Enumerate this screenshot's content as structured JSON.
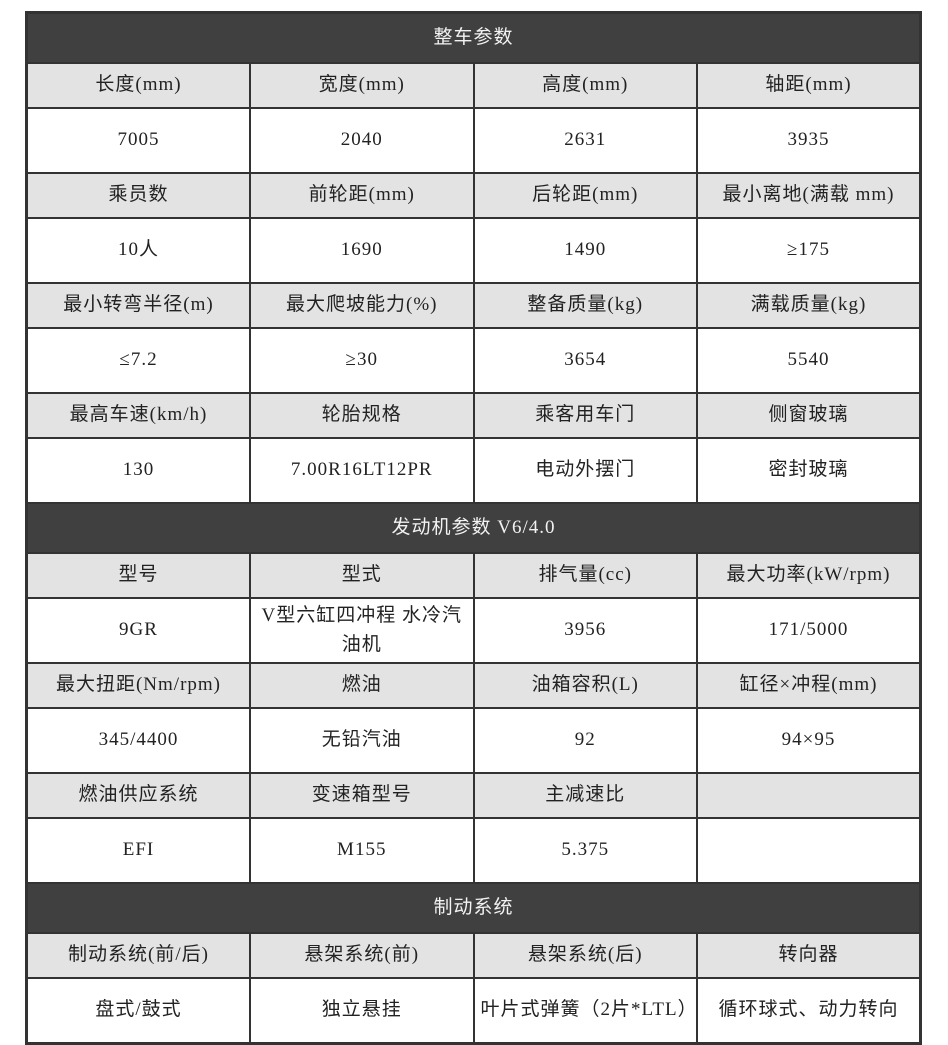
{
  "colors": {
    "section_header_bg": "#404040",
    "section_header_text": "#f2f2f2",
    "label_row_bg": "#e3e3e3",
    "value_row_bg": "#ffffff",
    "border": "#333333"
  },
  "table": {
    "columns": 4,
    "sections": [
      {
        "title": "整车参数",
        "rows": [
          {
            "type": "label",
            "cells": [
              "长度(mm)",
              "宽度(mm)",
              "高度(mm)",
              "轴距(mm)"
            ]
          },
          {
            "type": "value",
            "cells": [
              "7005",
              "2040",
              "2631",
              "3935"
            ]
          },
          {
            "type": "label",
            "cells": [
              "乘员数",
              "前轮距(mm)",
              "后轮距(mm)",
              "最小离地(满载 mm)"
            ]
          },
          {
            "type": "value",
            "cells": [
              "10人",
              "1690",
              "1490",
              "≥175"
            ]
          },
          {
            "type": "label",
            "cells": [
              "最小转弯半径(m)",
              "最大爬坡能力(%)",
              "整备质量(kg)",
              "满载质量(kg)"
            ]
          },
          {
            "type": "value",
            "cells": [
              "≤7.2",
              "≥30",
              "3654",
              "5540"
            ]
          },
          {
            "type": "label",
            "cells": [
              "最高车速(km/h)",
              "轮胎规格",
              "乘客用车门",
              "侧窗玻璃"
            ]
          },
          {
            "type": "value",
            "cells": [
              "130",
              "7.00R16LT12PR",
              "电动外摆门",
              "密封玻璃"
            ]
          }
        ]
      },
      {
        "title": "发动机参数 V6/4.0",
        "rows": [
          {
            "type": "label",
            "cells": [
              "型号",
              "型式",
              "排气量(cc)",
              "最大功率(kW/rpm)"
            ]
          },
          {
            "type": "value",
            "cells": [
              "9GR",
              "V型六缸四冲程 水冷汽油机",
              "3956",
              "171/5000"
            ]
          },
          {
            "type": "label",
            "cells": [
              "最大扭距(Nm/rpm)",
              "燃油",
              "油箱容积(L)",
              "缸径×冲程(mm)"
            ]
          },
          {
            "type": "value",
            "cells": [
              "345/4400",
              "无铅汽油",
              "92",
              "94×95"
            ]
          },
          {
            "type": "label",
            "cells": [
              "燃油供应系统",
              "变速箱型号",
              "主减速比",
              ""
            ]
          },
          {
            "type": "value",
            "cells": [
              "EFI",
              "M155",
              "5.375",
              ""
            ]
          }
        ]
      },
      {
        "title": "制动系统",
        "rows": [
          {
            "type": "label",
            "cells": [
              "制动系统(前/后)",
              "悬架系统(前)",
              "悬架系统(后)",
              "转向器"
            ]
          },
          {
            "type": "value",
            "cells": [
              "盘式/鼓式",
              "独立悬挂",
              "叶片式弹簧（2片*LTL）",
              "循环球式、动力转向"
            ]
          }
        ]
      }
    ]
  }
}
